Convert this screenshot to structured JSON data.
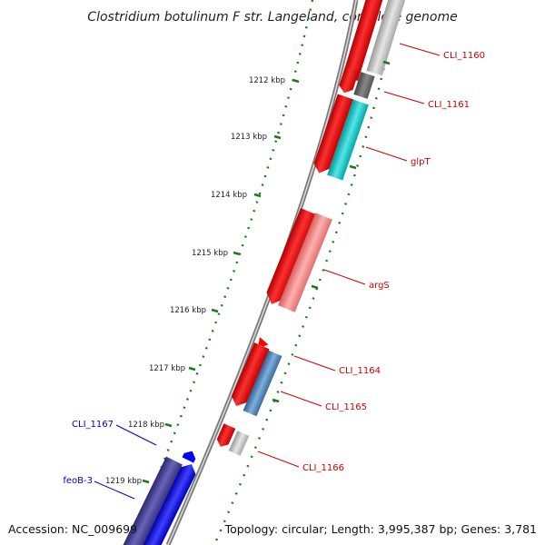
{
  "title": "Clostridium botulinum F str. Langeland, complete genome",
  "footer": {
    "accession": "Accession: NC_009699",
    "topology": "Topology: circular; Length: 3,995,387 bp; Genes: 3,781"
  },
  "colors": {
    "forward_strand_gene": "#ff0000",
    "reverse_label": "#0000cc",
    "forward_label": "#cc0000",
    "tick": "#1a7a1a",
    "backbone": "#888888"
  },
  "ruler": [
    {
      "label": "1212 kbp"
    },
    {
      "label": "1213 kbp"
    },
    {
      "label": "1214 kbp"
    },
    {
      "label": "1215 kbp"
    },
    {
      "label": "1216 kbp"
    },
    {
      "label": "1217 kbp"
    },
    {
      "label": "1218 kbp"
    },
    {
      "label": "1219 kbp"
    }
  ],
  "gene_labels": [
    {
      "text": "CLI_1160",
      "strand": "forward"
    },
    {
      "text": "CLI_1161",
      "strand": "forward"
    },
    {
      "text": "glpT",
      "strand": "forward"
    },
    {
      "text": "argS",
      "strand": "forward"
    },
    {
      "text": "CLI_1164",
      "strand": "forward"
    },
    {
      "text": "CLI_1165",
      "strand": "forward"
    },
    {
      "text": "CLI_1166",
      "strand": "forward"
    },
    {
      "text": "CLI_1167",
      "strand": "reverse"
    },
    {
      "text": "feoB-3",
      "strand": "reverse"
    }
  ]
}
